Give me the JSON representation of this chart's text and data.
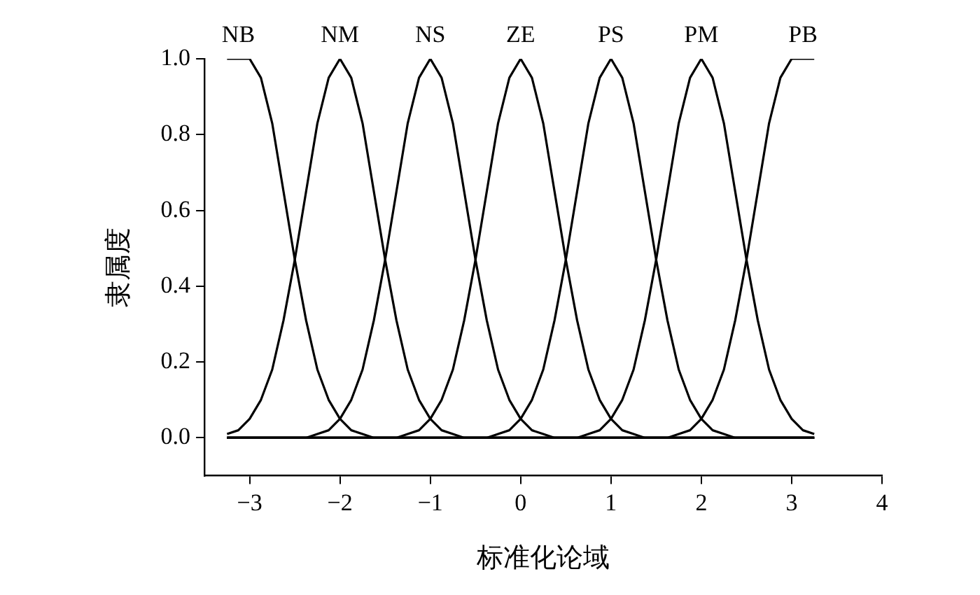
{
  "chart_data": {
    "type": "line",
    "xlabel": "标准化论域",
    "ylabel": "隶属度",
    "xlim": [
      -3.5,
      4
    ],
    "ylim": [
      -0.1,
      1.0
    ],
    "xticks": [
      {
        "value": -3,
        "label": "−3"
      },
      {
        "value": -2,
        "label": "−2"
      },
      {
        "value": -1,
        "label": "−1"
      },
      0,
      1,
      2,
      3,
      4
    ],
    "yticks": [
      {
        "value": 0,
        "label": "0.0"
      },
      {
        "value": 0.2,
        "label": "0.2"
      },
      {
        "value": 0.4,
        "label": "0.4"
      },
      {
        "value": 0.6,
        "label": "0.6"
      },
      {
        "value": 0.8,
        "label": "0.8"
      },
      {
        "value": 1,
        "label": "1.0"
      }
    ],
    "grid": false,
    "legend": false,
    "marker": "none",
    "line_style": "solid",
    "series": [
      {
        "name": "NB",
        "color": "#000000",
        "x": [
          -3.25,
          -3,
          -2.875,
          -2.75,
          -2.625,
          -2.5,
          -2.375,
          -2.25,
          -2.125,
          -2,
          -1.875,
          -1.75,
          -1.625,
          -1.5,
          3.25
        ],
        "values": [
          1,
          1,
          0.95,
          0.83,
          0.65,
          0.47,
          0.31,
          0.18,
          0.1,
          0.05,
          0.02,
          0.01,
          0,
          0,
          0
        ]
      },
      {
        "name": "NM",
        "color": "#000000",
        "x": [
          -3.25,
          -3.125,
          -3,
          -2.875,
          -2.75,
          -2.625,
          -2.5,
          -2.375,
          -2.25,
          -2.125,
          -2,
          -1.875,
          -1.75,
          -1.625,
          -1.5,
          -1.375,
          -1.25,
          -1.125,
          -1,
          -0.875,
          -0.75,
          -0.625,
          -0.5,
          3.25
        ],
        "values": [
          0.01,
          0.02,
          0.05,
          0.1,
          0.18,
          0.31,
          0.47,
          0.65,
          0.83,
          0.95,
          1,
          0.95,
          0.83,
          0.65,
          0.47,
          0.31,
          0.18,
          0.1,
          0.05,
          0.02,
          0.01,
          0,
          0,
          0
        ]
      },
      {
        "name": "NS",
        "color": "#000000",
        "x": [
          -3.25,
          -2.5,
          -2.375,
          -2.25,
          -2.125,
          -2,
          -1.875,
          -1.75,
          -1.625,
          -1.5,
          -1.375,
          -1.25,
          -1.125,
          -1,
          -0.875,
          -0.75,
          -0.625,
          -0.5,
          -0.375,
          -0.25,
          -0.125,
          0,
          0.125,
          0.25,
          0.375,
          0.5,
          3.25
        ],
        "values": [
          0,
          0,
          0,
          0.01,
          0.02,
          0.05,
          0.1,
          0.18,
          0.31,
          0.47,
          0.65,
          0.83,
          0.95,
          1,
          0.95,
          0.83,
          0.65,
          0.47,
          0.31,
          0.18,
          0.1,
          0.05,
          0.02,
          0.01,
          0,
          0,
          0
        ]
      },
      {
        "name": "ZE",
        "color": "#000000",
        "x": [
          -3.25,
          -1.5,
          -1.375,
          -1.25,
          -1.125,
          -1,
          -0.875,
          -0.75,
          -0.625,
          -0.5,
          -0.375,
          -0.25,
          -0.125,
          0,
          0.125,
          0.25,
          0.375,
          0.5,
          0.625,
          0.75,
          0.875,
          1,
          1.125,
          1.25,
          1.375,
          1.5,
          3.25
        ],
        "values": [
          0,
          0,
          0,
          0.01,
          0.02,
          0.05,
          0.1,
          0.18,
          0.31,
          0.47,
          0.65,
          0.83,
          0.95,
          1,
          0.95,
          0.83,
          0.65,
          0.47,
          0.31,
          0.18,
          0.1,
          0.05,
          0.02,
          0.01,
          0,
          0,
          0
        ]
      },
      {
        "name": "PS",
        "color": "#000000",
        "x": [
          -3.25,
          -0.5,
          -0.375,
          -0.25,
          -0.125,
          0,
          0.125,
          0.25,
          0.375,
          0.5,
          0.625,
          0.75,
          0.875,
          1,
          1.125,
          1.25,
          1.375,
          1.5,
          1.625,
          1.75,
          1.875,
          2,
          2.125,
          2.25,
          2.375,
          2.5,
          3.25
        ],
        "values": [
          0,
          0,
          0,
          0.01,
          0.02,
          0.05,
          0.1,
          0.18,
          0.31,
          0.47,
          0.65,
          0.83,
          0.95,
          1,
          0.95,
          0.83,
          0.65,
          0.47,
          0.31,
          0.18,
          0.1,
          0.05,
          0.02,
          0.01,
          0,
          0,
          0
        ]
      },
      {
        "name": "PM",
        "color": "#000000",
        "x": [
          -3.25,
          0.5,
          0.625,
          0.75,
          0.875,
          1,
          1.125,
          1.25,
          1.375,
          1.5,
          1.625,
          1.75,
          1.875,
          2,
          2.125,
          2.25,
          2.375,
          2.5,
          2.625,
          2.75,
          2.875,
          3,
          3.125,
          3.25
        ],
        "values": [
          0,
          0,
          0,
          0.01,
          0.02,
          0.05,
          0.1,
          0.18,
          0.31,
          0.47,
          0.65,
          0.83,
          0.95,
          1,
          0.95,
          0.83,
          0.65,
          0.47,
          0.31,
          0.18,
          0.1,
          0.05,
          0.02,
          0.01
        ]
      },
      {
        "name": "PB",
        "color": "#000000",
        "x": [
          -3.25,
          1.5,
          1.625,
          1.75,
          1.875,
          2,
          2.125,
          2.25,
          2.375,
          2.5,
          2.625,
          2.75,
          2.875,
          3,
          3.25
        ],
        "values": [
          0,
          0,
          0,
          0.01,
          0.02,
          0.05,
          0.1,
          0.18,
          0.31,
          0.47,
          0.65,
          0.83,
          0.95,
          1,
          1
        ]
      }
    ]
  }
}
